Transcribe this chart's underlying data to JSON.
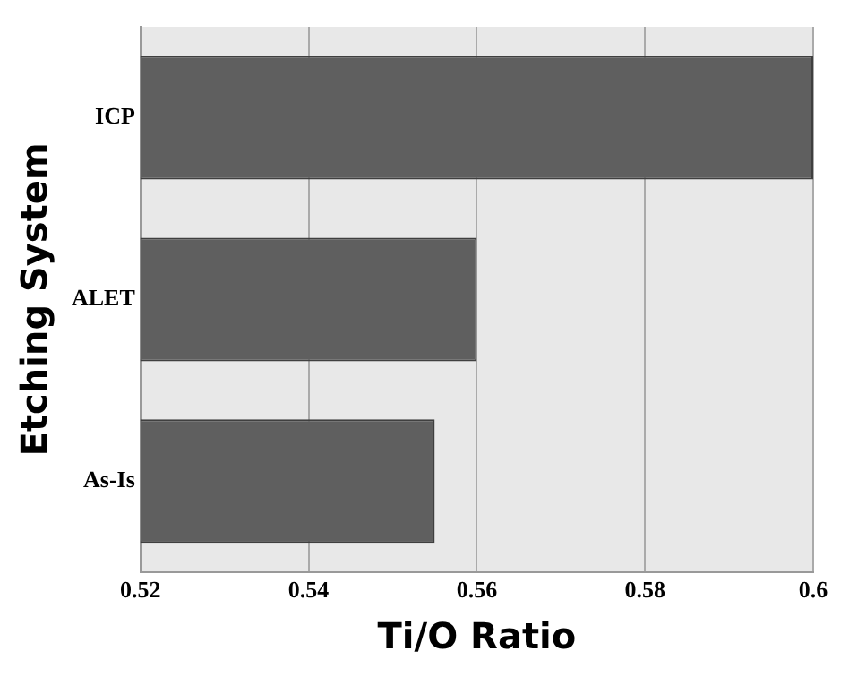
{
  "chart_data": {
    "type": "bar",
    "orientation": "horizontal",
    "categories": [
      "ICP",
      "ALET",
      "As-Is"
    ],
    "values": [
      0.6,
      0.56,
      0.555
    ],
    "color": "#5f5f5f",
    "xlim": [
      0.52,
      0.6
    ],
    "xticks": [
      0.52,
      0.54,
      0.56,
      0.58,
      0.6
    ],
    "xlabel": "Ti/O Ratio",
    "ylabel": "Etching System",
    "grid": "x"
  }
}
